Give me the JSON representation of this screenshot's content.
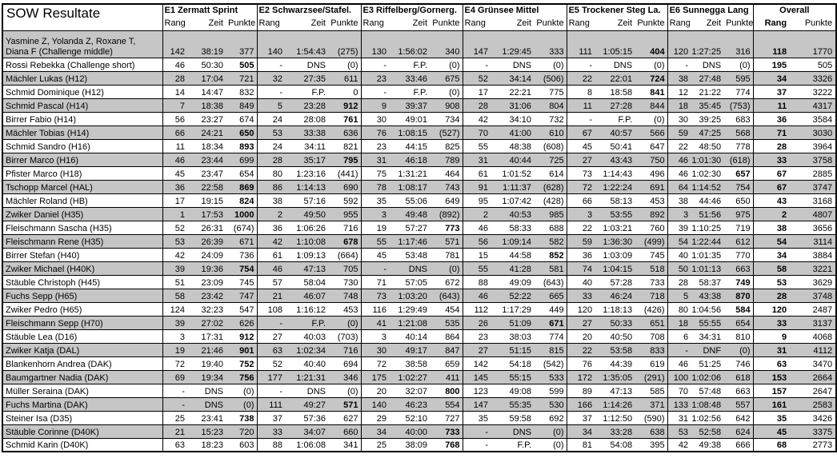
{
  "title": "SOW Resultate",
  "events": [
    "E1 Zermatt Sprint",
    "E2 Schwarzsee/Stafel.",
    "E3 Riffelberg/Gornerg.",
    "E4 Grünsee Mittel",
    "E5 Trockener Steg La.",
    "E6 Sunnegga Lang"
  ],
  "subheaders": [
    "Rang",
    "Zeit",
    "Punkte"
  ],
  "overall": {
    "label": "Overall",
    "cols": [
      "Rang",
      "Punkte"
    ]
  },
  "colors": {
    "row_shade": "#c6c6c6",
    "border": "#000000",
    "background": "#ffffff"
  },
  "rows": [
    {
      "name": [
        "Yasmine Z, Yolanda Z, Roxane T,",
        "Diana F (Challenge middle)"
      ],
      "e": [
        [
          "142",
          "38:19",
          "377"
        ],
        [
          "140",
          "1:54:43",
          "(275)"
        ],
        [
          "130",
          "1:56:02",
          "340"
        ],
        [
          "147",
          "1:29:45",
          "333"
        ],
        [
          "111",
          "1:05:15",
          "404"
        ],
        [
          "120",
          "1:27:25",
          "316"
        ]
      ],
      "bold": 4,
      "overall": [
        "118",
        "1770"
      ]
    },
    {
      "name": [
        "Rossi Rebekka (Challenge short)"
      ],
      "e": [
        [
          "46",
          "50:30",
          "505"
        ],
        [
          "-",
          "DNS",
          "(0)"
        ],
        [
          "-",
          "F.P.",
          "(0)"
        ],
        [
          "-",
          "DNS",
          "(0)"
        ],
        [
          "-",
          "DNS",
          "(0)"
        ],
        [
          "-",
          "DNS",
          "(0)"
        ]
      ],
      "bold": 0,
      "overall": [
        "195",
        "505"
      ]
    },
    {
      "name": [
        "Mächler Lukas (H12)"
      ],
      "e": [
        [
          "28",
          "17:04",
          "721"
        ],
        [
          "32",
          "27:35",
          "611"
        ],
        [
          "23",
          "33:46",
          "675"
        ],
        [
          "52",
          "34:14",
          "(506)"
        ],
        [
          "22",
          "22:01",
          "724"
        ],
        [
          "38",
          "27:48",
          "595"
        ]
      ],
      "bold": 4,
      "overall": [
        "34",
        "3326"
      ]
    },
    {
      "name": [
        "Schmid Dominique (H12)"
      ],
      "e": [
        [
          "14",
          "14:47",
          "832"
        ],
        [
          "-",
          "F.P.",
          "0"
        ],
        [
          "-",
          "F.P.",
          "(0)"
        ],
        [
          "17",
          "22:21",
          "775"
        ],
        [
          "8",
          "18:58",
          "841"
        ],
        [
          "12",
          "21:22",
          "774"
        ]
      ],
      "bold": 4,
      "overall": [
        "37",
        "3222"
      ]
    },
    {
      "name": [
        "Schmid Pascal (H14)"
      ],
      "e": [
        [
          "7",
          "18:38",
          "849"
        ],
        [
          "5",
          "23:28",
          "912"
        ],
        [
          "9",
          "39:37",
          "908"
        ],
        [
          "28",
          "31:06",
          "804"
        ],
        [
          "11",
          "27:28",
          "844"
        ],
        [
          "18",
          "35:45",
          "(753)"
        ]
      ],
      "bold": 1,
      "overall": [
        "11",
        "4317"
      ]
    },
    {
      "name": [
        "Birrer Fabio (H14)"
      ],
      "e": [
        [
          "56",
          "23:27",
          "674"
        ],
        [
          "24",
          "28:08",
          "761"
        ],
        [
          "30",
          "49:01",
          "734"
        ],
        [
          "42",
          "34:10",
          "732"
        ],
        [
          "-",
          "F.P.",
          "(0)"
        ],
        [
          "30",
          "39:25",
          "683"
        ]
      ],
      "bold": 1,
      "overall": [
        "36",
        "3584"
      ]
    },
    {
      "name": [
        "Mächler Tobias (H14)"
      ],
      "e": [
        [
          "66",
          "24:21",
          "650"
        ],
        [
          "53",
          "33:38",
          "636"
        ],
        [
          "76",
          "1:08:15",
          "(527)"
        ],
        [
          "70",
          "41:00",
          "610"
        ],
        [
          "67",
          "40:57",
          "566"
        ],
        [
          "59",
          "47:25",
          "568"
        ]
      ],
      "bold": 0,
      "overall": [
        "71",
        "3030"
      ]
    },
    {
      "name": [
        "Schmid Sandro (H16)"
      ],
      "e": [
        [
          "11",
          "18:34",
          "893"
        ],
        [
          "24",
          "34:11",
          "821"
        ],
        [
          "23",
          "44:15",
          "825"
        ],
        [
          "55",
          "48:38",
          "(608)"
        ],
        [
          "45",
          "50:41",
          "647"
        ],
        [
          "22",
          "48:50",
          "778"
        ]
      ],
      "bold": 0,
      "overall": [
        "28",
        "3964"
      ]
    },
    {
      "name": [
        "Birrer Marco (H16)"
      ],
      "e": [
        [
          "46",
          "23:44",
          "699"
        ],
        [
          "28",
          "35:17",
          "795"
        ],
        [
          "31",
          "46:18",
          "789"
        ],
        [
          "31",
          "40:44",
          "725"
        ],
        [
          "27",
          "43:43",
          "750"
        ],
        [
          "46",
          "1:01:30",
          "(618)"
        ]
      ],
      "bold": 1,
      "overall": [
        "33",
        "3758"
      ]
    },
    {
      "name": [
        "Pfister Marco (H18)"
      ],
      "e": [
        [
          "45",
          "23:47",
          "654"
        ],
        [
          "80",
          "1:23:16",
          "(441)"
        ],
        [
          "75",
          "1:31:21",
          "464"
        ],
        [
          "61",
          "1:01:52",
          "614"
        ],
        [
          "73",
          "1:14:43",
          "496"
        ],
        [
          "46",
          "1:02:30",
          "657"
        ]
      ],
      "bold": 5,
      "overall": [
        "67",
        "2885"
      ]
    },
    {
      "name": [
        "Tschopp Marcel (HAL)"
      ],
      "e": [
        [
          "36",
          "22:58",
          "869"
        ],
        [
          "86",
          "1:14:13",
          "690"
        ],
        [
          "78",
          "1:08:17",
          "743"
        ],
        [
          "91",
          "1:11:37",
          "(628)"
        ],
        [
          "72",
          "1:22:24",
          "691"
        ],
        [
          "64",
          "1:14:52",
          "754"
        ]
      ],
      "bold": 0,
      "overall": [
        "67",
        "3747"
      ]
    },
    {
      "name": [
        "Mächler Roland (HB)"
      ],
      "e": [
        [
          "17",
          "19:15",
          "824"
        ],
        [
          "38",
          "57:16",
          "592"
        ],
        [
          "35",
          "55:06",
          "649"
        ],
        [
          "95",
          "1:07:42",
          "(428)"
        ],
        [
          "66",
          "58:13",
          "453"
        ],
        [
          "38",
          "44:46",
          "650"
        ]
      ],
      "bold": 0,
      "overall": [
        "43",
        "3168"
      ]
    },
    {
      "name": [
        "Zwiker Daniel (H35)"
      ],
      "e": [
        [
          "1",
          "17:53",
          "1000"
        ],
        [
          "2",
          "49:50",
          "955"
        ],
        [
          "3",
          "49:48",
          "(892)"
        ],
        [
          "2",
          "40:53",
          "985"
        ],
        [
          "3",
          "53:55",
          "892"
        ],
        [
          "3",
          "51:56",
          "975"
        ]
      ],
      "bold": 0,
      "overall": [
        "2",
        "4807"
      ]
    },
    {
      "name": [
        "Fleischmann Sascha (H35)"
      ],
      "e": [
        [
          "52",
          "26:31",
          "(674)"
        ],
        [
          "36",
          "1:06:26",
          "716"
        ],
        [
          "19",
          "57:27",
          "773"
        ],
        [
          "46",
          "58:33",
          "688"
        ],
        [
          "22",
          "1:03:21",
          "760"
        ],
        [
          "39",
          "1:10:25",
          "719"
        ]
      ],
      "bold": 2,
      "overall": [
        "38",
        "3656"
      ]
    },
    {
      "name": [
        "Fleischmann Rene (H35)"
      ],
      "e": [
        [
          "53",
          "26:39",
          "671"
        ],
        [
          "42",
          "1:10:08",
          "678"
        ],
        [
          "55",
          "1:17:46",
          "571"
        ],
        [
          "56",
          "1:09:14",
          "582"
        ],
        [
          "59",
          "1:36:30",
          "(499)"
        ],
        [
          "54",
          "1:22:44",
          "612"
        ]
      ],
      "bold": 1,
      "overall": [
        "54",
        "3114"
      ]
    },
    {
      "name": [
        "Birrer Stefan (H40)"
      ],
      "e": [
        [
          "42",
          "24:09",
          "736"
        ],
        [
          "61",
          "1:09:13",
          "(664)"
        ],
        [
          "45",
          "53:48",
          "781"
        ],
        [
          "15",
          "44:58",
          "852"
        ],
        [
          "36",
          "1:03:09",
          "745"
        ],
        [
          "40",
          "1:01:35",
          "770"
        ]
      ],
      "bold": 3,
      "overall": [
        "34",
        "3884"
      ]
    },
    {
      "name": [
        "Zwiker Michael (H40K)"
      ],
      "e": [
        [
          "39",
          "19:36",
          "754"
        ],
        [
          "46",
          "47:13",
          "705"
        ],
        [
          "-",
          "DNS",
          "(0)"
        ],
        [
          "55",
          "41:28",
          "581"
        ],
        [
          "74",
          "1:04:15",
          "518"
        ],
        [
          "50",
          "1:01:13",
          "663"
        ]
      ],
      "bold": 0,
      "overall": [
        "58",
        "3221"
      ]
    },
    {
      "name": [
        "Stäuble Christoph (H45)"
      ],
      "e": [
        [
          "51",
          "23:09",
          "745"
        ],
        [
          "57",
          "58:04",
          "730"
        ],
        [
          "71",
          "57:05",
          "672"
        ],
        [
          "88",
          "49:09",
          "(643)"
        ],
        [
          "40",
          "57:28",
          "733"
        ],
        [
          "28",
          "58:37",
          "749"
        ]
      ],
      "bold": 5,
      "overall": [
        "53",
        "3629"
      ]
    },
    {
      "name": [
        "Fuchs Sepp (H65)"
      ],
      "e": [
        [
          "58",
          "23:42",
          "747"
        ],
        [
          "21",
          "46:07",
          "748"
        ],
        [
          "73",
          "1:03:20",
          "(643)"
        ],
        [
          "46",
          "52:22",
          "665"
        ],
        [
          "33",
          "46:24",
          "718"
        ],
        [
          "5",
          "43:38",
          "870"
        ]
      ],
      "bold": 5,
      "overall": [
        "28",
        "3748"
      ]
    },
    {
      "name": [
        "Zwiker Pedro (H65)"
      ],
      "e": [
        [
          "124",
          "32:23",
          "547"
        ],
        [
          "108",
          "1:16:12",
          "453"
        ],
        [
          "116",
          "1:29:49",
          "454"
        ],
        [
          "112",
          "1:17:29",
          "449"
        ],
        [
          "120",
          "1:18:13",
          "(426)"
        ],
        [
          "80",
          "1:04:56",
          "584"
        ]
      ],
      "bold": 5,
      "overall": [
        "120",
        "2487"
      ]
    },
    {
      "name": [
        "Fleischmann Sepp (H70)"
      ],
      "e": [
        [
          "39",
          "27:02",
          "626"
        ],
        [
          "-",
          "F.P.",
          "(0)"
        ],
        [
          "41",
          "1:21:08",
          "535"
        ],
        [
          "26",
          "51:09",
          "671"
        ],
        [
          "27",
          "50:33",
          "651"
        ],
        [
          "18",
          "55:55",
          "654"
        ]
      ],
      "bold": 3,
      "overall": [
        "33",
        "3137"
      ]
    },
    {
      "name": [
        "Stäuble Lea (D16)"
      ],
      "e": [
        [
          "3",
          "17:31",
          "912"
        ],
        [
          "27",
          "40:03",
          "(703)"
        ],
        [
          "3",
          "40:14",
          "864"
        ],
        [
          "23",
          "38:03",
          "774"
        ],
        [
          "20",
          "40:50",
          "708"
        ],
        [
          "6",
          "34:31",
          "810"
        ]
      ],
      "bold": 0,
      "overall": [
        "9",
        "4068"
      ]
    },
    {
      "name": [
        "Zwiker Katja (DAL)"
      ],
      "e": [
        [
          "19",
          "21:46",
          "901"
        ],
        [
          "63",
          "1:02:34",
          "716"
        ],
        [
          "30",
          "49:17",
          "847"
        ],
        [
          "27",
          "51:15",
          "815"
        ],
        [
          "22",
          "53:58",
          "833"
        ],
        [
          "-",
          "DNF",
          "(0)"
        ]
      ],
      "bold": 0,
      "overall": [
        "31",
        "4112"
      ]
    },
    {
      "name": [
        "Blankenhorn Andrea (DAK)"
      ],
      "e": [
        [
          "72",
          "19:40",
          "752"
        ],
        [
          "52",
          "40:40",
          "694"
        ],
        [
          "72",
          "38:58",
          "659"
        ],
        [
          "142",
          "54:18",
          "(542)"
        ],
        [
          "76",
          "44:39",
          "619"
        ],
        [
          "46",
          "51:25",
          "746"
        ]
      ],
      "bold": 0,
      "overall": [
        "63",
        "3470"
      ]
    },
    {
      "name": [
        "Baumgartner Nadia (DAK)"
      ],
      "e": [
        [
          "69",
          "19:34",
          "756"
        ],
        [
          "177",
          "1:21:31",
          "346"
        ],
        [
          "175",
          "1:02:27",
          "411"
        ],
        [
          "145",
          "55:15",
          "533"
        ],
        [
          "172",
          "1:35:05",
          "(291)"
        ],
        [
          "100",
          "1:02:06",
          "618"
        ]
      ],
      "bold": 0,
      "overall": [
        "153",
        "2664"
      ]
    },
    {
      "name": [
        "Müller Seraina (DAK)"
      ],
      "e": [
        [
          "-",
          "DNS",
          "(0)"
        ],
        [
          "-",
          "DNS",
          "(0)"
        ],
        [
          "20",
          "32:07",
          "800"
        ],
        [
          "123",
          "49:08",
          "599"
        ],
        [
          "89",
          "47:13",
          "585"
        ],
        [
          "70",
          "57:48",
          "663"
        ]
      ],
      "bold": 2,
      "overall": [
        "157",
        "2647"
      ]
    },
    {
      "name": [
        "Fuchs Martina (DAK)"
      ],
      "e": [
        [
          "-",
          "DNS",
          "(0)"
        ],
        [
          "111",
          "49:27",
          "571"
        ],
        [
          "140",
          "46:23",
          "554"
        ],
        [
          "147",
          "55:35",
          "530"
        ],
        [
          "166",
          "1:14:26",
          "371"
        ],
        [
          "133",
          "1:08:48",
          "557"
        ]
      ],
      "bold": 1,
      "overall": [
        "161",
        "2583"
      ]
    },
    {
      "name": [
        "Steiner Isa (D35)"
      ],
      "e": [
        [
          "25",
          "23:41",
          "738"
        ],
        [
          "37",
          "57:36",
          "627"
        ],
        [
          "29",
          "52:10",
          "727"
        ],
        [
          "35",
          "59:58",
          "692"
        ],
        [
          "37",
          "1:12:50",
          "(590)"
        ],
        [
          "31",
          "1:02:56",
          "642"
        ]
      ],
      "bold": 0,
      "overall": [
        "35",
        "3426"
      ]
    },
    {
      "name": [
        "Stäuble Corinne (D40K)"
      ],
      "e": [
        [
          "21",
          "15:23",
          "720"
        ],
        [
          "33",
          "34:07",
          "660"
        ],
        [
          "34",
          "40:00",
          "733"
        ],
        [
          "-",
          "DNS",
          "(0)"
        ],
        [
          "34",
          "33:28",
          "638"
        ],
        [
          "53",
          "52:58",
          "624"
        ]
      ],
      "bold": 2,
      "overall": [
        "45",
        "3375"
      ]
    },
    {
      "name": [
        "Schmid Karin (D40K)"
      ],
      "e": [
        [
          "63",
          "18:23",
          "603"
        ],
        [
          "88",
          "1:06:08",
          "341"
        ],
        [
          "25",
          "38:09",
          "768"
        ],
        [
          "-",
          "F.P.",
          "(0)"
        ],
        [
          "81",
          "54:08",
          "395"
        ],
        [
          "42",
          "49:38",
          "666"
        ]
      ],
      "bold": 2,
      "overall": [
        "68",
        "2773"
      ]
    }
  ]
}
